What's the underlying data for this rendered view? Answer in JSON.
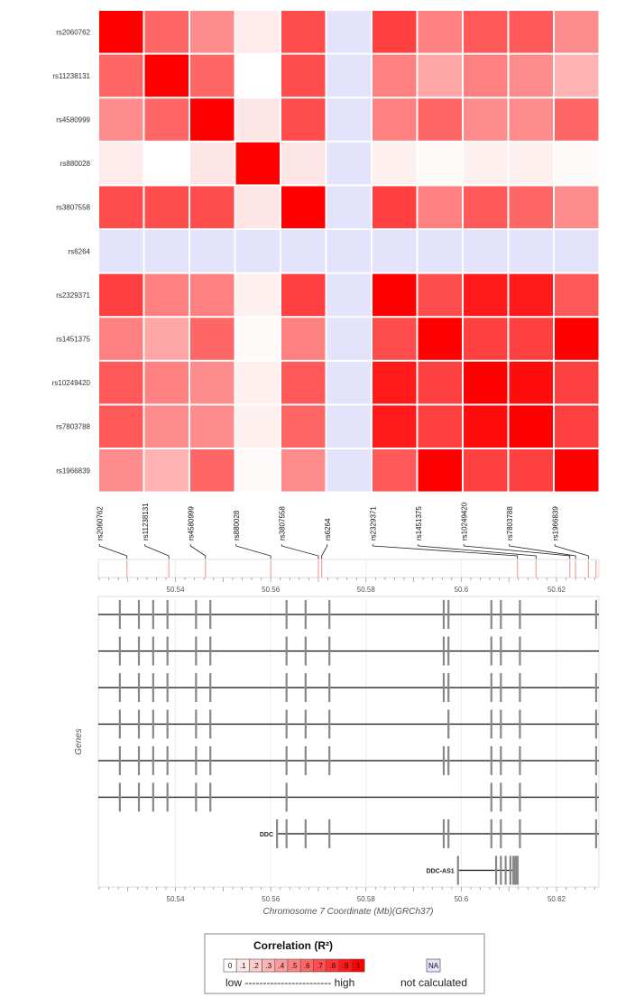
{
  "chart_data": {
    "type": "heatmap",
    "snps": [
      "rs2060762",
      "rs11238131",
      "rs4580999",
      "rs880028",
      "rs3807558",
      "rs6264",
      "rs2329371",
      "rs1451375",
      "rs10249420",
      "rs7803788",
      "rs1966839"
    ],
    "r2_matrix": [
      [
        1.0,
        0.6,
        0.45,
        0.08,
        0.7,
        null,
        0.75,
        0.5,
        0.65,
        0.65,
        0.45
      ],
      [
        0.6,
        1.0,
        0.6,
        0.0,
        0.7,
        null,
        0.5,
        0.35,
        0.5,
        0.45,
        0.3
      ],
      [
        0.45,
        0.6,
        1.0,
        0.1,
        0.7,
        null,
        0.5,
        0.6,
        0.45,
        0.45,
        0.6
      ],
      [
        0.08,
        0.0,
        0.1,
        1.0,
        0.1,
        null,
        0.06,
        0.02,
        0.06,
        0.06,
        0.02
      ],
      [
        0.7,
        0.7,
        0.7,
        0.1,
        1.0,
        null,
        0.75,
        0.5,
        0.65,
        0.6,
        0.45
      ],
      [
        null,
        null,
        null,
        null,
        null,
        null,
        null,
        null,
        null,
        null,
        null
      ],
      [
        0.75,
        0.5,
        0.5,
        0.06,
        0.75,
        null,
        1.0,
        0.7,
        0.9,
        0.9,
        0.65
      ],
      [
        0.5,
        0.35,
        0.6,
        0.02,
        0.5,
        null,
        0.7,
        1.0,
        0.75,
        0.75,
        1.0
      ],
      [
        0.65,
        0.5,
        0.45,
        0.06,
        0.65,
        null,
        0.9,
        0.75,
        1.0,
        0.95,
        0.75
      ],
      [
        0.65,
        0.45,
        0.45,
        0.06,
        0.6,
        null,
        0.9,
        0.75,
        0.95,
        1.0,
        0.75
      ],
      [
        0.45,
        0.3,
        0.6,
        0.02,
        0.45,
        null,
        0.65,
        1.0,
        0.75,
        0.75,
        1.0
      ]
    ],
    "snp_positions_mb": [
      50.5298,
      50.5386,
      50.5463,
      50.56,
      50.57,
      50.5707,
      50.6118,
      50.6157,
      50.6228,
      50.624,
      50.6267
    ],
    "extra_marker_positions_mb": [
      50.6283
    ],
    "genes": [
      {
        "label": "",
        "start": 50.5238,
        "end": 50.6289,
        "exons": [
          50.5283,
          50.5323,
          50.5353,
          50.5383,
          50.5443,
          50.5473,
          50.5633,
          50.5673,
          50.5723,
          50.5963,
          50.5973,
          50.6063,
          50.6083,
          50.6123,
          50.6283
        ]
      },
      {
        "label": "",
        "start": 50.5238,
        "end": 50.6289,
        "exons": [
          50.5283,
          50.5323,
          50.5353,
          50.5383,
          50.5443,
          50.5473,
          50.5633,
          50.5673,
          50.5723,
          50.5963,
          50.5973,
          50.6063,
          50.6083,
          50.6123
        ]
      },
      {
        "label": "",
        "start": 50.5238,
        "end": 50.6289,
        "exons": [
          50.5283,
          50.5323,
          50.5353,
          50.5383,
          50.5443,
          50.5473,
          50.5633,
          50.5673,
          50.5723,
          50.5963,
          50.5973,
          50.6063,
          50.6083,
          50.6123,
          50.6283
        ]
      },
      {
        "label": "",
        "start": 50.5238,
        "end": 50.6289,
        "exons": [
          50.5283,
          50.5323,
          50.5353,
          50.5383,
          50.5443,
          50.5473,
          50.5633,
          50.5673,
          50.5723,
          50.5973,
          50.6063,
          50.6083,
          50.6123,
          50.6283
        ]
      },
      {
        "label": "",
        "start": 50.5238,
        "end": 50.6289,
        "exons": [
          50.5283,
          50.5323,
          50.5353,
          50.5383,
          50.5443,
          50.5473,
          50.5633,
          50.5673,
          50.5723,
          50.5963,
          50.5973,
          50.6063,
          50.6083,
          50.6123,
          50.6283
        ]
      },
      {
        "label": "",
        "start": 50.5238,
        "end": 50.6289,
        "exons": [
          50.5283,
          50.5323,
          50.5353,
          50.5383,
          50.5443,
          50.5473,
          50.5633,
          50.6063,
          50.6083,
          50.6123,
          50.6283
        ]
      },
      {
        "label": "DDC",
        "start": 50.5613,
        "end": 50.6289,
        "exons": [
          50.5613,
          50.5633,
          50.5673,
          50.5723,
          50.5963,
          50.5973,
          50.6063,
          50.6083,
          50.6123,
          50.6283
        ]
      },
      {
        "label": "DDC-AS1",
        "start": 50.5993,
        "end": 50.6113,
        "exons": [
          50.5993,
          50.6073,
          50.6083,
          50.6093,
          50.6103,
          50.6113
        ]
      }
    ],
    "xaxis": {
      "min": 50.5238,
      "max": 50.6289,
      "ticks": [
        50.54,
        50.56,
        50.58,
        50.6,
        50.62
      ],
      "tick_labels": [
        "50.54",
        "50.56",
        "50.58",
        "50.6",
        "50.62"
      ]
    },
    "xlabel": "Chromosome 7 Coordinate (Mb)(GRCh37)",
    "ylabel": "Genes",
    "grid": true
  },
  "legend": {
    "title": "Correlation (R²)",
    "scale_labels": [
      "0",
      ".1",
      ".2",
      ".3",
      ".4",
      ".5",
      ".6",
      ".7",
      ".8",
      ".9",
      "1"
    ],
    "low_high": "low ------------------------ high",
    "na_label": "NA",
    "na_text": "not calculated"
  },
  "colors": {
    "high": "#ff0000",
    "low": "#ffffff",
    "na_cell": "#e3e3fb",
    "gene_exon": "#888888",
    "gene_line": "#111111",
    "snp_marker": "#f4a0a0"
  }
}
